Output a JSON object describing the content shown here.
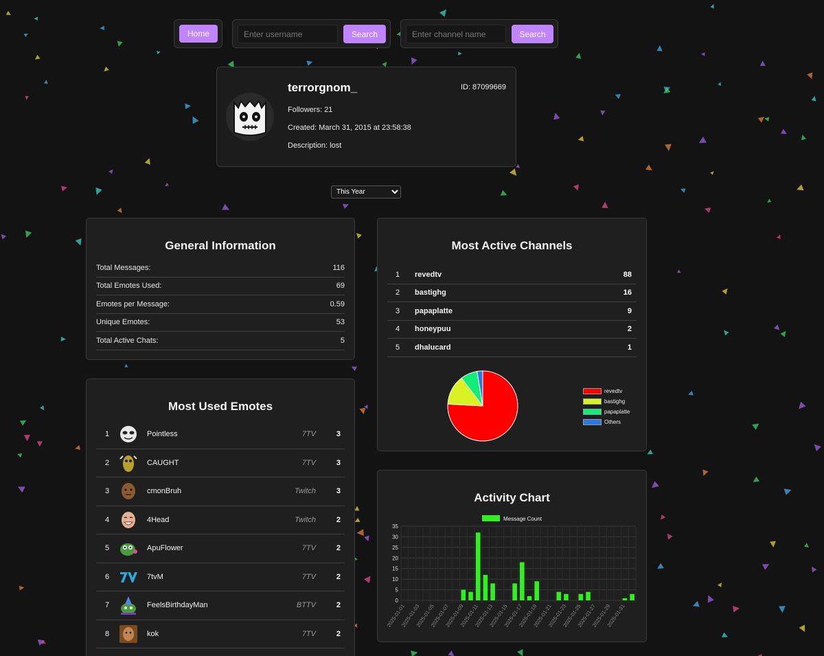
{
  "nav": {
    "home_label": "Home",
    "user_search": {
      "placeholder": "Enter username",
      "button": "Search"
    },
    "channel_search": {
      "placeholder": "Enter channel name",
      "button": "Search"
    }
  },
  "profile": {
    "name": "terrorgnom_",
    "id_text": "ID: 87099669",
    "followers_text": "Followers: 21",
    "created_text": "Created: March 31, 2015 at 23:58:38",
    "description_text": "Description: lost"
  },
  "period": {
    "selected": "This Year"
  },
  "general": {
    "title": "General Information",
    "rows": [
      {
        "label": "Total Messages:",
        "value": "116"
      },
      {
        "label": "Total Emotes Used:",
        "value": "69"
      },
      {
        "label": "Emotes per Message:",
        "value": "0.59"
      },
      {
        "label": "Unique Emotes:",
        "value": "53"
      },
      {
        "label": "Total Active Chats:",
        "value": "5"
      }
    ]
  },
  "channels": {
    "title": "Most Active Channels",
    "rows": [
      {
        "rank": "1",
        "name": "revedtv",
        "count": "88"
      },
      {
        "rank": "2",
        "name": "bastighg",
        "count": "16"
      },
      {
        "rank": "3",
        "name": "papaplatte",
        "count": "9"
      },
      {
        "rank": "4",
        "name": "honeypuu",
        "count": "2"
      },
      {
        "rank": "5",
        "name": "dhalucard",
        "count": "1"
      }
    ]
  },
  "emotes": {
    "title": "Most Used Emotes",
    "rows": [
      {
        "rank": "1",
        "name": "Pointless",
        "provider": "7TV",
        "count": "3",
        "icon": "pointless-emote-icon"
      },
      {
        "rank": "2",
        "name": "CAUGHT",
        "provider": "7TV",
        "count": "3",
        "icon": "caught-emote-icon"
      },
      {
        "rank": "3",
        "name": "cmonBruh",
        "provider": "Twitch",
        "count": "3",
        "icon": "cmonbruh-emote-icon"
      },
      {
        "rank": "4",
        "name": "4Head",
        "provider": "Twitch",
        "count": "2",
        "icon": "4head-emote-icon"
      },
      {
        "rank": "5",
        "name": "ApuFlower",
        "provider": "7TV",
        "count": "2",
        "icon": "apuflower-emote-icon"
      },
      {
        "rank": "6",
        "name": "7tvM",
        "provider": "7TV",
        "count": "2",
        "icon": "7tvm-emote-icon"
      },
      {
        "rank": "7",
        "name": "FeelsBirthdayMan",
        "provider": "BTTV",
        "count": "2",
        "icon": "feelsbirthdayman-emote-icon"
      },
      {
        "rank": "8",
        "name": "kok",
        "provider": "7TV",
        "count": "2",
        "icon": "kok-emote-icon"
      }
    ]
  },
  "activity": {
    "title": "Activity Chart"
  },
  "chart_data": [
    {
      "type": "pie",
      "categories": [
        "revedtv",
        "bastighg",
        "papaplatte",
        "Others"
      ],
      "values": [
        88,
        16,
        9,
        3
      ],
      "colors": [
        "#ff0000",
        "#d8f222",
        "#10ee78",
        "#2b79e0"
      ],
      "legend": "right"
    },
    {
      "type": "bar",
      "series": [
        {
          "name": "Message Count",
          "color": "#33ee22"
        }
      ],
      "x": [
        "2025-01-01",
        "2025-01-02",
        "2025-01-03",
        "2025-01-04",
        "2025-01-05",
        "2025-01-06",
        "2025-01-07",
        "2025-01-08",
        "2025-01-09",
        "2025-01-10",
        "2025-01-11",
        "2025-01-12",
        "2025-01-13",
        "2025-01-14",
        "2025-01-15",
        "2025-01-16",
        "2025-01-17",
        "2025-01-18",
        "2025-01-19",
        "2025-01-20",
        "2025-01-21",
        "2025-01-22",
        "2025-01-23",
        "2025-01-24",
        "2025-01-25",
        "2025-01-26",
        "2025-01-27",
        "2025-01-28",
        "2025-01-29",
        "2025-01-30",
        "2025-01-31",
        "2025-02-01"
      ],
      "values": [
        0,
        0,
        0,
        0,
        0,
        0,
        0,
        0,
        5,
        4,
        32,
        12,
        8,
        0,
        0,
        8,
        18,
        2,
        9,
        0,
        0,
        4,
        3,
        0,
        3,
        4,
        0,
        0,
        0,
        0,
        1,
        3
      ],
      "x_tick_labels": [
        "2025-01-01",
        "2025-01-03",
        "2025-01-05",
        "2025-01-07",
        "2025-01-09",
        "2025-01-11",
        "2025-01-13",
        "2025-01-15",
        "2025-01-17",
        "2025-01-19",
        "2025-01-21",
        "2025-01-23",
        "2025-01-25",
        "2025-01-27",
        "2025-01-29",
        "2025-01-31"
      ],
      "ylim": [
        0,
        35
      ],
      "y_ticks": [
        "0",
        "5",
        "10",
        "15",
        "20",
        "25",
        "30",
        "35"
      ],
      "grid": true,
      "legend": "top"
    }
  ]
}
